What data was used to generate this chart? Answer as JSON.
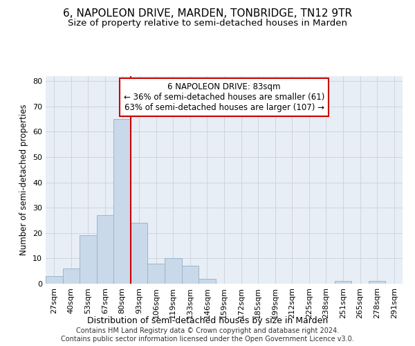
{
  "title": "6, NAPOLEON DRIVE, MARDEN, TONBRIDGE, TN12 9TR",
  "subtitle": "Size of property relative to semi-detached houses in Marden",
  "xlabel": "Distribution of semi-detached houses by size in Marden",
  "ylabel": "Number of semi-detached properties",
  "footer_line1": "Contains HM Land Registry data © Crown copyright and database right 2024.",
  "footer_line2": "Contains public sector information licensed under the Open Government Licence v3.0.",
  "bar_labels": [
    "27sqm",
    "40sqm",
    "53sqm",
    "67sqm",
    "80sqm",
    "93sqm",
    "106sqm",
    "119sqm",
    "133sqm",
    "146sqm",
    "159sqm",
    "172sqm",
    "185sqm",
    "199sqm",
    "212sqm",
    "225sqm",
    "238sqm",
    "251sqm",
    "265sqm",
    "278sqm",
    "291sqm"
  ],
  "bar_values": [
    3,
    6,
    19,
    27,
    65,
    24,
    8,
    10,
    7,
    2,
    0,
    0,
    0,
    0,
    0,
    0,
    0,
    1,
    0,
    1,
    0
  ],
  "bar_color": "#c9d9ea",
  "bar_edgecolor": "#9ab5cc",
  "bar_width": 1.0,
  "vline_color": "#cc0000",
  "vline_label": "6 NAPOLEON DRIVE: 83sqm",
  "smaller_pct": "36%",
  "smaller_count": 61,
  "larger_pct": "63%",
  "larger_count": 107,
  "annotation_box_color": "#cc0000",
  "ylim": [
    0,
    82
  ],
  "yticks": [
    0,
    10,
    20,
    30,
    40,
    50,
    60,
    70,
    80
  ],
  "grid_color": "#cdd5e0",
  "background_color": "#e8eef5",
  "title_fontsize": 11,
  "subtitle_fontsize": 9.5,
  "xlabel_fontsize": 9,
  "ylabel_fontsize": 8.5,
  "tick_fontsize": 8,
  "footer_fontsize": 7,
  "ann_fontsize": 8.5
}
